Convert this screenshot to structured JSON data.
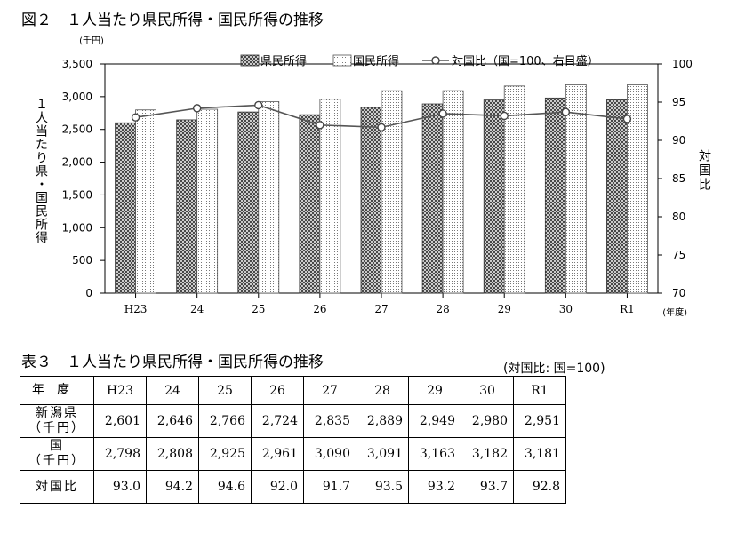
{
  "figure_title": "図２　１人当たり県民所得・国民所得の推移",
  "chart_data": {
    "type": "bar",
    "categories": [
      "H23",
      "24",
      "25",
      "26",
      "27",
      "28",
      "29",
      "30",
      "R1"
    ],
    "series": [
      {
        "name": "県民所得",
        "kind": "bar",
        "axis": "left",
        "pattern": "crosshatch",
        "values": [
          2601,
          2646,
          2766,
          2724,
          2835,
          2889,
          2949,
          2980,
          2951
        ]
      },
      {
        "name": "国民所得",
        "kind": "bar",
        "axis": "left",
        "pattern": "dots",
        "values": [
          2798,
          2808,
          2925,
          2961,
          3090,
          3091,
          3163,
          3182,
          3181
        ]
      },
      {
        "name": "対国比（国=100、右目盛）",
        "kind": "line",
        "axis": "right",
        "marker": "open-circle",
        "values": [
          93.0,
          94.2,
          94.6,
          92.0,
          91.7,
          93.5,
          93.2,
          93.7,
          92.8
        ]
      }
    ],
    "y_left": {
      "unit": "(千円)",
      "label": "１人当たり県・国民所得",
      "min": 0,
      "max": 3500,
      "step": 500,
      "tick_labels": [
        "0",
        "500",
        "1,000",
        "1,500",
        "2,000",
        "2,500",
        "3,000",
        "3,500"
      ]
    },
    "y_right": {
      "label": "対国比",
      "min": 70,
      "max": 100,
      "step": 5,
      "tick_labels": [
        "70",
        "75",
        "80",
        "85",
        "90",
        "95",
        "100"
      ]
    },
    "x_unit": "(年度)",
    "legend": {
      "position": "top-right"
    },
    "grid": false
  },
  "table": {
    "title": "表３　１人当たり県民所得・国民所得の推移",
    "note": "(対国比: 国=100)",
    "header_label": "年度",
    "columns": [
      "H23",
      "24",
      "25",
      "26",
      "27",
      "28",
      "29",
      "30",
      "R1"
    ],
    "rows": [
      {
        "label_line1": "新潟県",
        "label_line2": "（千円）",
        "values": [
          "2,601",
          "2,646",
          "2,766",
          "2,724",
          "2,835",
          "2,889",
          "2,949",
          "2,980",
          "2,951"
        ]
      },
      {
        "label_line1": "国",
        "label_line2": "（千円）",
        "values": [
          "2,798",
          "2,808",
          "2,925",
          "2,961",
          "3,090",
          "3,091",
          "3,163",
          "3,182",
          "3,181"
        ]
      },
      {
        "label_line1": "対国比",
        "label_line2": "",
        "values": [
          "93.0",
          "94.2",
          "94.6",
          "92.0",
          "91.7",
          "93.5",
          "93.2",
          "93.7",
          "92.8"
        ]
      }
    ]
  }
}
